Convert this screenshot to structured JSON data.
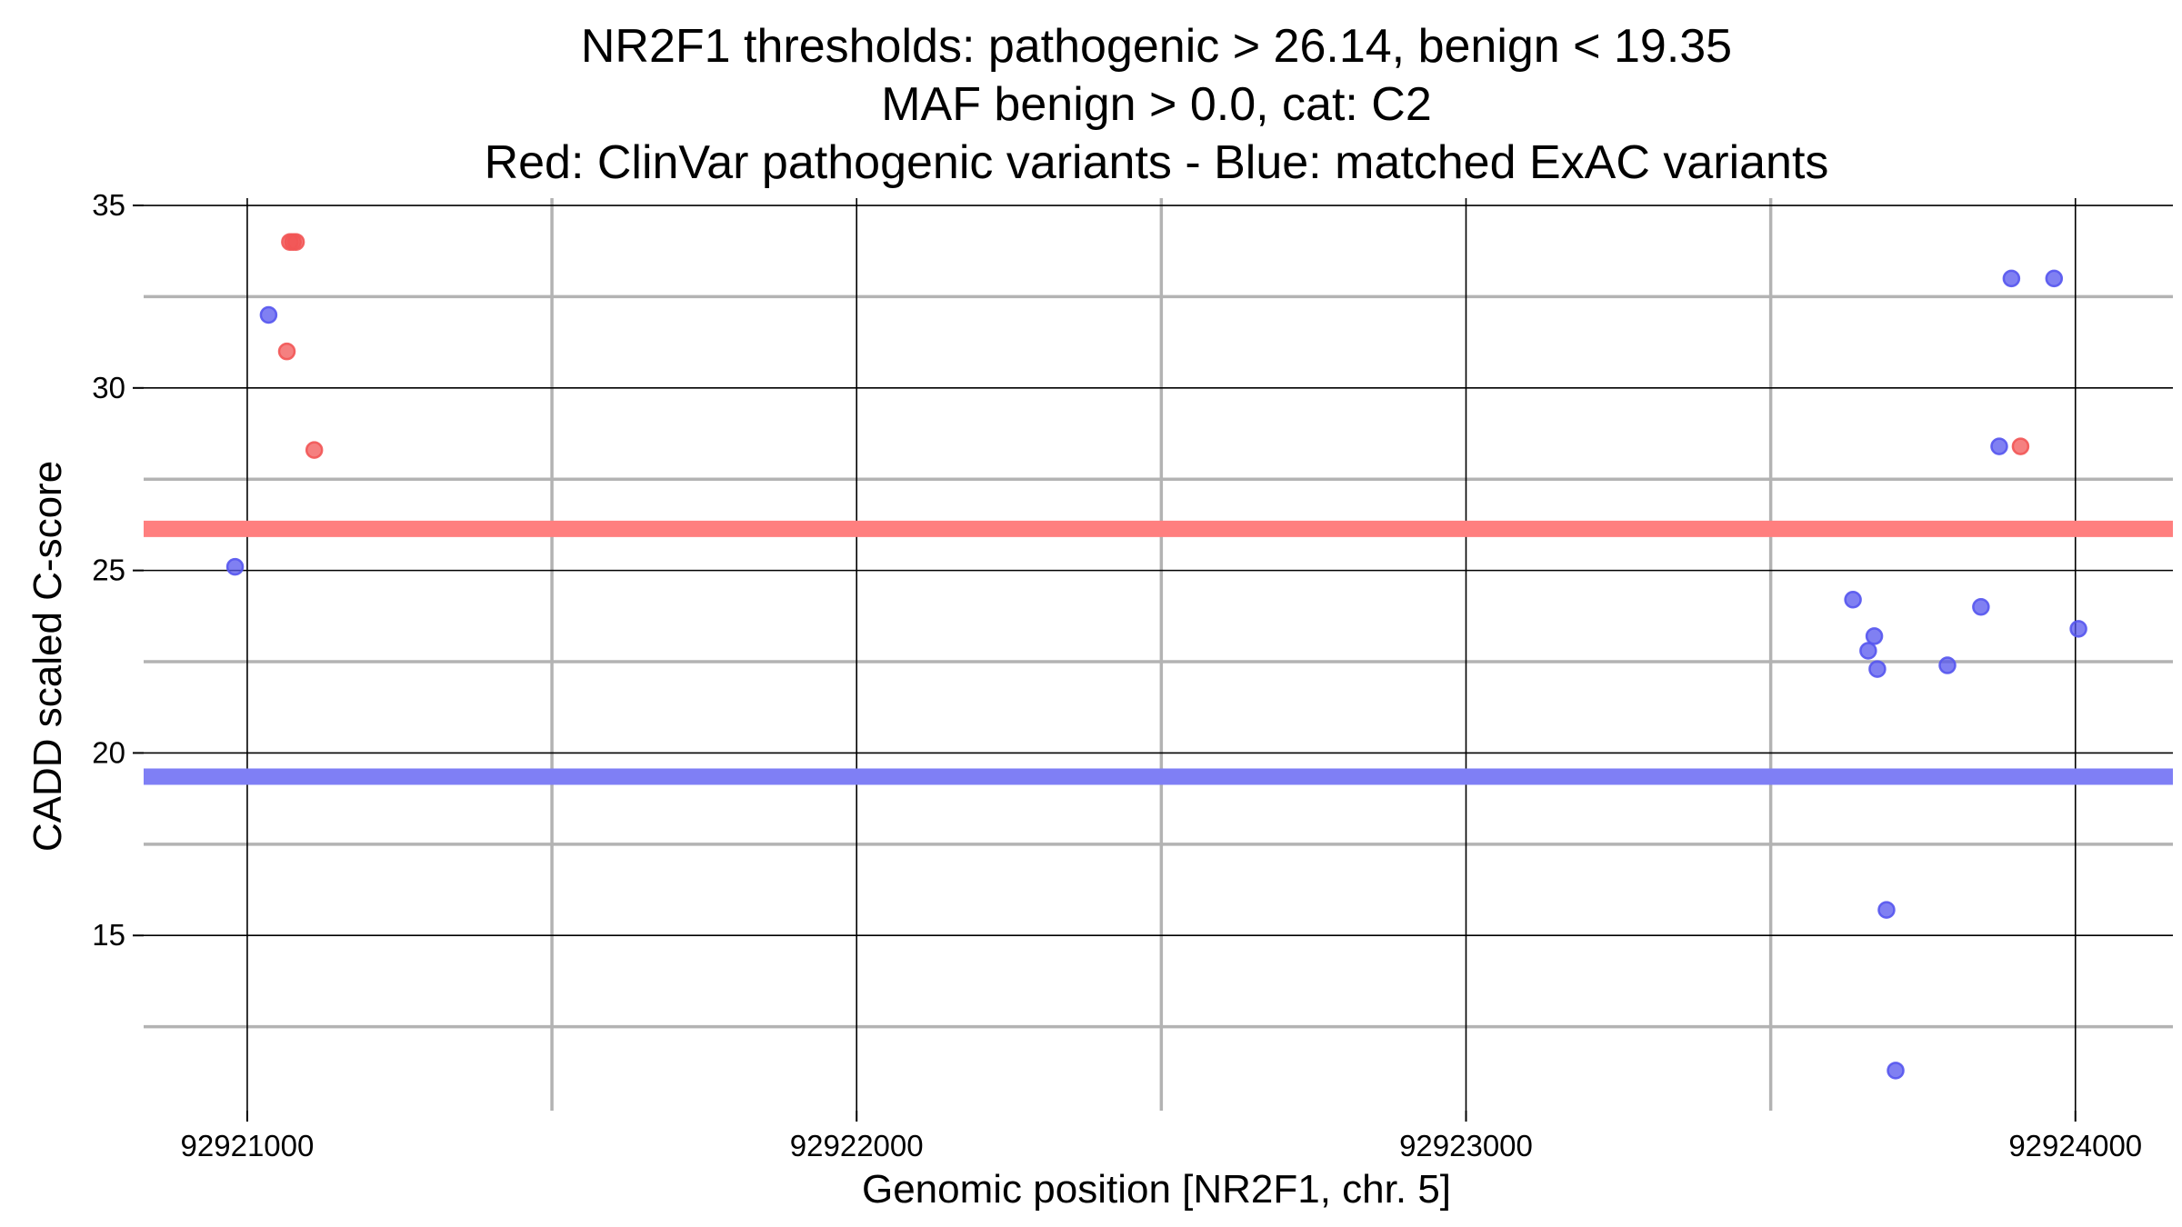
{
  "chart_data": {
    "type": "scatter",
    "title_lines": [
      "NR2F1 thresholds: pathogenic > 26.14, benign < 19.35",
      "MAF benign > 0.0, cat: C2",
      "Red: ClinVar pathogenic variants - Blue: matched ExAC variants"
    ],
    "xlabel": "Genomic position [NR2F1, chr. 5]",
    "ylabel": "CADD scaled C-score",
    "xlim": [
      92920830,
      92924160
    ],
    "ylim": [
      10.2,
      35.2
    ],
    "x_ticks": [
      92921000,
      92922000,
      92923000,
      92924000
    ],
    "x_tick_labels": [
      "92921000",
      "92922000",
      "92923000",
      "92924000"
    ],
    "x_minor_ticks": [
      92921500,
      92922500,
      92923500
    ],
    "y_ticks": [
      15,
      20,
      25,
      30,
      35
    ],
    "y_tick_labels": [
      "15",
      "20",
      "25",
      "30",
      "35"
    ],
    "y_minor_ticks": [
      12.5,
      17.5,
      22.5,
      27.5,
      32.5
    ],
    "grid": true,
    "thresholds": [
      {
        "label": "pathogenic",
        "value": 26.14,
        "color": "#ff7f7f"
      },
      {
        "label": "benign",
        "value": 19.35,
        "color": "#7f7ff5"
      }
    ],
    "series": [
      {
        "color": "#f25555",
        "points": [
          {
            "x": 92921070,
            "y": 34.0
          },
          {
            "x": 92921075,
            "y": 34.0
          },
          {
            "x": 92921080,
            "y": 34.0
          },
          {
            "x": 92921065,
            "y": 31.0
          },
          {
            "x": 92921110,
            "y": 28.3
          },
          {
            "x": 92923910,
            "y": 28.4
          }
        ]
      },
      {
        "color": "#5555ee",
        "points": [
          {
            "x": 92920980,
            "y": 25.1
          },
          {
            "x": 92921035,
            "y": 32.0
          },
          {
            "x": 92923635,
            "y": 24.2
          },
          {
            "x": 92923660,
            "y": 22.8
          },
          {
            "x": 92923670,
            "y": 23.2
          },
          {
            "x": 92923675,
            "y": 22.3
          },
          {
            "x": 92923690,
            "y": 15.7
          },
          {
            "x": 92923705,
            "y": 11.3
          },
          {
            "x": 92923790,
            "y": 22.4
          },
          {
            "x": 92923845,
            "y": 24.0
          },
          {
            "x": 92923875,
            "y": 28.4
          },
          {
            "x": 92923895,
            "y": 33.0
          },
          {
            "x": 92923965,
            "y": 33.0
          },
          {
            "x": 92924005,
            "y": 23.4
          }
        ]
      }
    ]
  }
}
